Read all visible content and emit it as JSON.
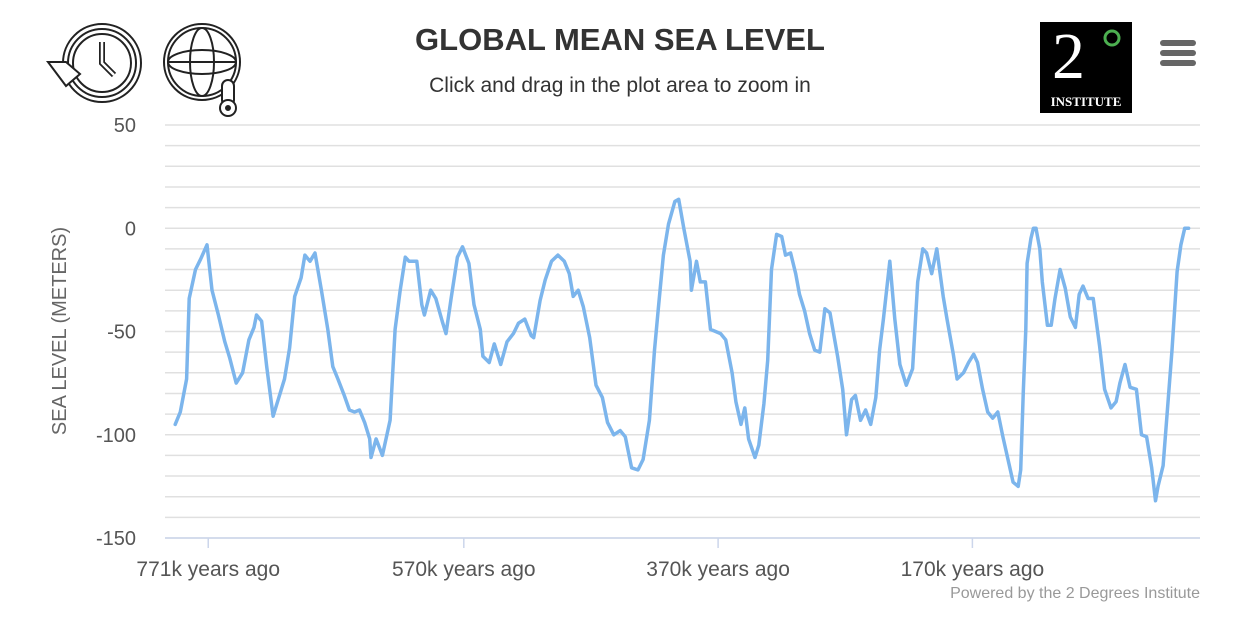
{
  "header": {
    "title": "GLOBAL MEAN SEA LEVEL",
    "subtitle": "Click and drag in the plot area to zoom in",
    "logo_text": "2° INSTITUTE",
    "icons": [
      "history-clock-icon",
      "globe-thermometer-icon",
      "menu-icon"
    ]
  },
  "credits": "Powered by the 2 Degrees Institute",
  "colors": {
    "series": "#7cb5ec",
    "grid": "#e0e0e0",
    "logo_circle": "#4caf50"
  },
  "chart_data": {
    "type": "line",
    "title": "GLOBAL MEAN SEA LEVEL",
    "subtitle": "Click and drag in the plot area to zoom in",
    "ylabel": "SEA LEVEL (METERS)",
    "xlabel": "",
    "x_unit": "thousand years ago",
    "xlim": [
      805,
      -9
    ],
    "ylim": [
      -150,
      50
    ],
    "yticks": [
      50,
      0,
      -50,
      -100,
      -150
    ],
    "ytick_labels": [
      "50",
      "0",
      "-50",
      "-100",
      "-150"
    ],
    "xticks": [
      771,
      570,
      370,
      170
    ],
    "xtick_labels": [
      "771k years ago",
      "570k years ago",
      "370k years ago",
      "170k years ago"
    ],
    "grid": true,
    "minor_grid_step": 10,
    "legend": "none",
    "x": [
      797,
      793,
      788,
      786,
      781,
      777,
      772,
      768,
      763,
      758,
      754,
      749,
      744,
      739,
      735,
      733,
      729,
      725,
      720,
      716,
      711,
      707,
      703,
      698,
      695,
      691,
      687,
      682,
      677,
      673,
      669,
      664,
      660,
      656,
      652,
      648,
      644,
      643,
      639,
      634,
      628,
      624,
      620,
      616,
      613,
      607,
      603,
      601,
      596,
      592,
      587,
      584,
      580,
      575,
      571,
      566,
      562,
      557,
      555,
      550,
      546,
      541,
      536,
      531,
      527,
      522,
      517,
      515,
      510,
      506,
      501,
      496,
      491,
      487,
      484,
      480,
      476,
      471,
      466,
      461,
      457,
      452,
      447,
      443,
      438,
      433,
      429,
      424,
      420,
      417,
      413,
      409,
      404,
      401,
      397,
      392,
      391,
      387,
      384,
      380,
      376,
      372,
      368,
      364,
      359,
      356,
      352,
      349,
      346,
      341,
      338,
      334,
      331,
      328,
      324,
      320,
      317,
      313,
      309,
      306,
      302,
      298,
      294,
      290,
      286,
      282,
      276,
      272,
      269,
      265,
      262,
      258,
      254,
      250,
      246,
      243,
      240,
      235,
      231,
      227,
      222,
      217,
      213,
      209,
      206,
      202,
      198,
      193,
      190,
      185,
      182,
      177,
      173,
      169,
      166,
      162,
      158,
      154,
      150,
      146,
      142,
      138,
      134,
      132,
      130,
      128,
      127,
      124,
      122,
      120,
      117,
      115,
      111,
      108,
      105,
      101,
      97,
      93,
      89,
      86,
      83,
      79,
      75,
      70,
      66,
      61,
      57,
      54,
      50,
      46,
      41,
      37,
      33,
      29,
      26,
      24,
      20,
      16,
      13,
      9,
      6,
      3,
      0
    ],
    "values": [
      -95,
      -89,
      -73,
      -34,
      -20,
      -15,
      -8,
      -30,
      -42,
      -55,
      -63,
      -75,
      -70,
      -54,
      -48,
      -42,
      -45,
      -67,
      -91,
      -83,
      -73,
      -58,
      -33,
      -24,
      -13,
      -16,
      -12,
      -30,
      -49,
      -67,
      -73,
      -81,
      -88,
      -89,
      -88,
      -94,
      -102,
      -111,
      -102,
      -110,
      -93,
      -49,
      -30,
      -14,
      -16,
      -16,
      -37,
      -42,
      -30,
      -34,
      -45,
      -51,
      -34,
      -14,
      -9,
      -17,
      -37,
      -49,
      -62,
      -65,
      -56,
      -66,
      -55,
      -51,
      -46,
      -44,
      -52,
      -53,
      -35,
      -25,
      -16,
      -13,
      -16,
      -22,
      -33,
      -30,
      -38,
      -53,
      -76,
      -82,
      -94,
      -100,
      -98,
      -101,
      -116,
      -117,
      -112,
      -93,
      -59,
      -39,
      -13,
      2,
      13,
      14,
      0,
      -16,
      -30,
      -16,
      -26,
      -26,
      -49,
      -50,
      -51,
      -54,
      -70,
      -84,
      -95,
      -87,
      -102,
      -111,
      -105,
      -85,
      -64,
      -20,
      -3,
      -4,
      -13,
      -12,
      -22,
      -32,
      -40,
      -51,
      -59,
      -60,
      -39,
      -41,
      -62,
      -78,
      -100,
      -83,
      -81,
      -93,
      -88,
      -95,
      -82,
      -59,
      -44,
      -16,
      -44,
      -66,
      -76,
      -68,
      -26,
      -10,
      -12,
      -22,
      -10,
      -33,
      -44,
      -61,
      -73,
      -70,
      -65,
      -61,
      -65,
      -78,
      -89,
      -92,
      -89,
      -101,
      -112,
      -123,
      -125,
      -117,
      -79,
      -49,
      -17,
      -5,
      0,
      0,
      -10,
      -26,
      -47,
      -47,
      -34,
      -20,
      -29,
      -43,
      -48,
      -32,
      -28,
      -34,
      -34,
      -57,
      -78,
      -87,
      -84,
      -75,
      -66,
      -77,
      -78,
      -100,
      -101,
      -116,
      -132,
      -125,
      -115,
      -83,
      -59,
      -21,
      -8,
      0,
      0
    ]
  }
}
